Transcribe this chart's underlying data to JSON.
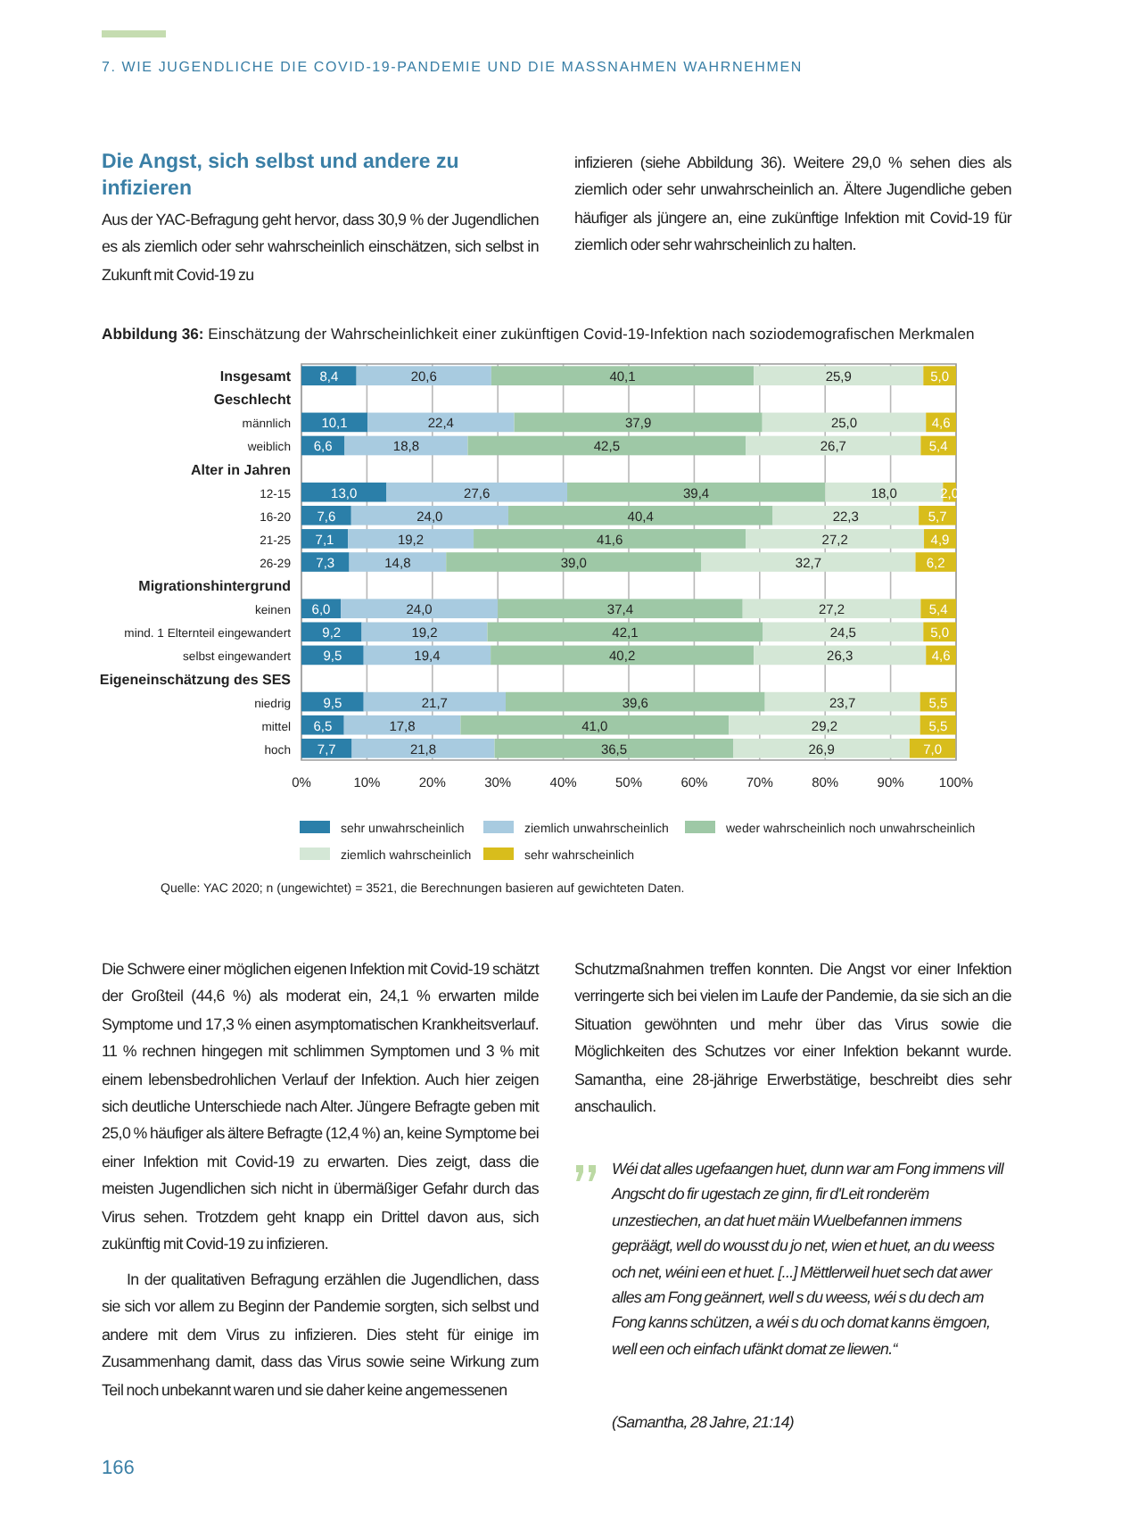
{
  "chart_data": {
    "type": "bar",
    "orientation": "horizontal",
    "stacked": true,
    "title": "Abbildung 36: Einschätzung der Wahrscheinlichkeit einer zukünftigen Covid-19-Infektion nach soziodemografischen Merkmalen",
    "categories": [
      "Insgesamt",
      "Geschlecht",
      "männlich",
      "weiblich",
      "Alter in Jahren",
      "12-15",
      "16-20",
      "21-25",
      "26-29",
      "Migrationshintergrund",
      "keinen",
      "mind. 1 Elternteil eingewandert",
      "selbst eingewandert",
      "Eigeneinschätzung des SES",
      "niedrig",
      "mittel",
      "hoch"
    ],
    "series": [
      {
        "name": "sehr unwahrscheinlich",
        "color": "#2b7fa9",
        "values": [
          8.4,
          null,
          10.1,
          6.6,
          null,
          13.0,
          7.6,
          7.1,
          7.3,
          null,
          6.0,
          9.2,
          9.5,
          null,
          9.5,
          6.5,
          7.7
        ],
        "value_labels": [
          "8,4",
          null,
          "10,1",
          "6,6",
          null,
          "13,0",
          "7,6",
          "7,1",
          "7,3",
          null,
          "6,0",
          "9,2",
          "9,5",
          null,
          "9,5",
          "6,5",
          "7,7"
        ]
      },
      {
        "name": "ziemlich unwahrscheinlich",
        "color": "#a8cbe0",
        "values": [
          20.6,
          null,
          22.4,
          18.8,
          null,
          27.6,
          24.0,
          19.2,
          14.8,
          null,
          24.0,
          19.2,
          19.4,
          null,
          21.7,
          17.8,
          21.8
        ],
        "value_labels": [
          "20,6",
          null,
          "22,4",
          "18,8",
          null,
          "27,6",
          "24,0",
          "19,2",
          "14,8",
          null,
          "24,0",
          "19,2",
          "19,4",
          null,
          "21,7",
          "17,8",
          "21,8"
        ]
      },
      {
        "name": "weder wahrscheinlich noch unwahrscheinlich",
        "color": "#9ec8a6",
        "values": [
          40.1,
          null,
          37.9,
          42.5,
          null,
          39.4,
          40.4,
          41.6,
          39.0,
          null,
          37.4,
          42.1,
          40.2,
          null,
          39.6,
          41.0,
          36.5
        ],
        "value_labels": [
          "40,1",
          null,
          "37,9",
          "42,5",
          null,
          "39,4",
          "40,4",
          "41,6",
          "39,0",
          null,
          "37,4",
          "42,1",
          "40,2",
          null,
          "39,6",
          "41,0",
          "36,5"
        ]
      },
      {
        "name": "ziemlich wahrscheinlich",
        "color": "#d4e7d6",
        "values": [
          25.9,
          null,
          25.0,
          26.7,
          null,
          18.0,
          22.3,
          27.2,
          32.7,
          null,
          27.2,
          24.5,
          26.3,
          null,
          23.7,
          29.2,
          26.9
        ],
        "value_labels": [
          "25,9",
          null,
          "25,0",
          "26,7",
          null,
          "18,0",
          "22,3",
          "27,2",
          "32,7",
          null,
          "27,2",
          "24,5",
          "26,3",
          null,
          "23,7",
          "29,2",
          "26,9"
        ]
      },
      {
        "name": "sehr wahrscheinlich",
        "color": "#d8bd1c",
        "values": [
          5.0,
          null,
          4.6,
          5.4,
          null,
          2.0,
          5.7,
          4.9,
          6.2,
          null,
          5.4,
          5.0,
          4.6,
          null,
          5.5,
          5.5,
          7.0
        ],
        "value_labels": [
          "5,0",
          null,
          "4,6",
          "5,4",
          null,
          "2,0",
          "5,7",
          "4,9",
          "6,2",
          null,
          "5,4",
          "5,0",
          "4,6",
          null,
          "5,5",
          "5,5",
          "7,0"
        ]
      }
    ],
    "xlim": [
      0,
      100
    ],
    "xticks": [
      {
        "value": 0,
        "label": "0%"
      },
      {
        "value": 10,
        "label": "10%"
      },
      {
        "value": 20,
        "label": "20%"
      },
      {
        "value": 30,
        "label": "30%"
      },
      {
        "value": 40,
        "label": "40%"
      },
      {
        "value": 50,
        "label": "50%"
      },
      {
        "value": 60,
        "label": "60%"
      },
      {
        "value": 70,
        "label": "70%"
      },
      {
        "value": 80,
        "label": "80%"
      },
      {
        "value": 90,
        "label": "90%"
      },
      {
        "value": 100,
        "label": "100%"
      }
    ],
    "grid": "x",
    "legend": "bottom",
    "annotations": [
      "7. WIE JUGENDLICHE DIE COVID-19-PANDEMIE UND DIE MASSNAHMEN WAHRNEHMEN",
      "Die Angst, sich selbst und andere zu infizieren",
      "Aus der YAC-Befragung geht hervor, dass 30,9 % der Jugendlichen es als ziemlich oder sehr wahrscheinlich einschätzen, sich selbst in Zukunft mit Covid-19 zu",
      "infizieren (siehe Abbildung 36). Weitere 29,0 % sehen dies als ziemlich oder sehr unwahrscheinlich an. Ältere Jugendliche geben häufiger als jüngere an, eine zukünftige Infektion mit Covid-19 für ziemlich oder sehr wahrscheinlich zu halten.",
      "Quelle: YAC 2020; n (ungewichtet) = 3521, die Berechnungen basieren auf gewichteten Daten.",
      "Die Schwere einer möglichen eigenen Infektion mit Covid-19 schätzt der Großteil (44,6 %) als moderat ein, 24,1 % erwarten milde Symptome und 17,3 % einen asymptomatischen Krankheitsverlauf. 11 % rechnen hingegen mit schlimmen Symptomen und 3 % mit einem lebensbedrohlichen Verlauf der Infektion. Auch hier zeigen sich deutliche Unterschiede nach Alter. Jüngere Befragte geben mit 25,0 % häufiger als ältere Befragte (12,4 %) an, keine Symptome bei einer Infektion mit Covid-19 zu erwarten. Dies zeigt, dass die meisten Jugendlichen sich nicht in übermäßiger Gefahr durch das Virus sehen. Trotzdem geht knapp ein Drittel davon aus, sich zukünftig mit Covid-19 zu infizieren.",
      "In der qualitativen Befragung erzählen die Jugendlichen, dass sie sich vor allem zu Beginn der Pandemie sorgten, sich selbst und andere mit dem Virus zu infizieren. Dies steht für einige im Zusammenhang damit, dass das Virus sowie seine Wirkung zum Teil noch unbekannt waren und sie daher keine angemessenen",
      "Schutzmaßnahmen treffen konnten. Die Angst vor einer Infektion verringerte sich bei vielen im Laufe der Pandemie, da sie sich an die Situation gewöhnten und mehr über das Virus sowie die Möglichkeiten des Schutzes vor einer Infektion bekannt wurde. Samantha, eine 28-jährige Erwerbstätige, beschreibt dies sehr anschaulich.",
      "Wéi dat alles ugefaangen huet, dunn war am Fong immens vill Angscht do fir ugestach ze ginn, fir d'Leit ronderëm unzestiechen, an dat huet mäin Wuelbefannen immens gepräägt, well do wousst du jo net, wien et huet, an du weess och net, wéini een et huet. [...] Mëttlerweil huet sech dat awer alles am Fong geännert, well s du weess, wéi s du dech am Fong kanns schützen, a wéi s du och domat kanns ëmgoen, well een och einfach ufänkt domat ze liewen.“",
      "(Samantha, 28 Jahre, 21:14)",
      "166"
    ]
  }
}
